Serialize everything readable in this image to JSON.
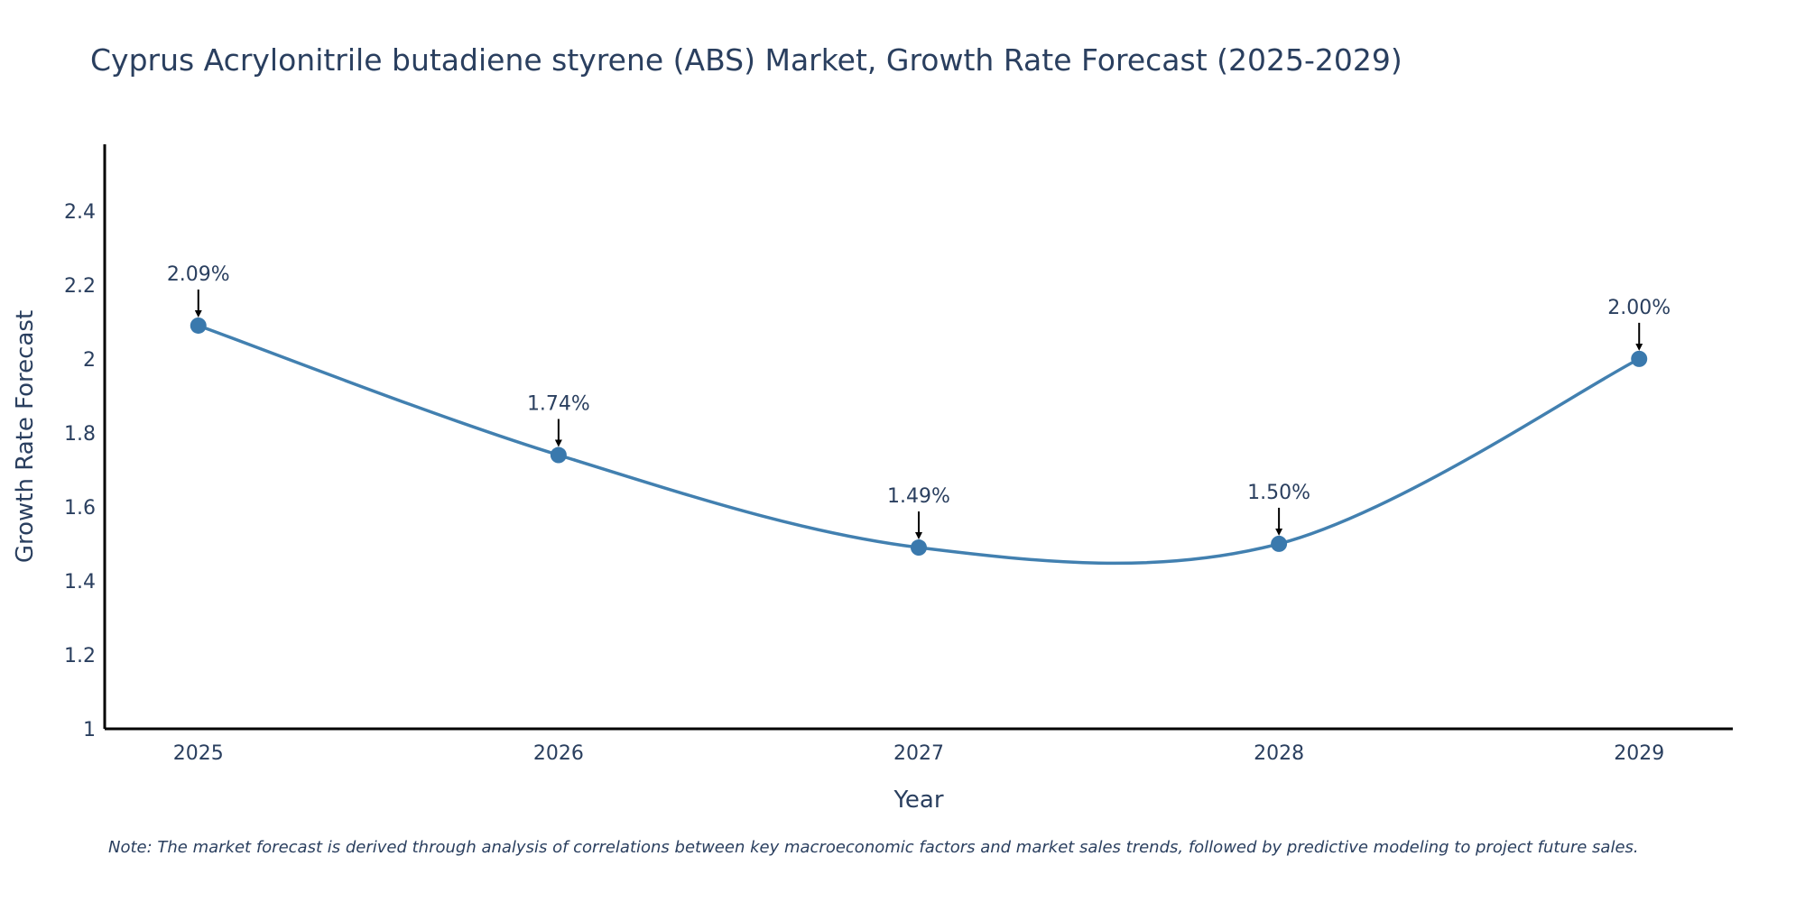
{
  "chart_data": {
    "type": "line",
    "title": "Cyprus Acrylonitrile butadiene styrene (ABS) Market, Growth Rate Forecast (2025-2029)",
    "xlabel": "Year",
    "ylabel": "Growth Rate Forecast",
    "categories": [
      "2025",
      "2026",
      "2027",
      "2028",
      "2029"
    ],
    "x": [
      2025,
      2026,
      2027,
      2028,
      2029
    ],
    "values": [
      2.09,
      1.74,
      1.49,
      1.5,
      2.0
    ],
    "data_labels": [
      "2.09%",
      "1.74%",
      "1.49%",
      "1.50%",
      "2.00%"
    ],
    "y_ticks": [
      "1",
      "1.2",
      "1.4",
      "1.6",
      "1.8",
      "2",
      "2.2",
      "2.4"
    ],
    "y_tick_values": [
      1,
      1.2,
      1.4,
      1.6,
      1.8,
      2.0,
      2.2,
      2.4
    ],
    "ylim": [
      1,
      2.58
    ],
    "xlim": [
      2024.74,
      2029.26
    ],
    "grid": false,
    "line_shape": "spline",
    "line_color": "#4280b0",
    "marker_color": "#3a79ad",
    "axis_color": "#000000",
    "annotation_arrow_color": "#000000"
  },
  "note": "Note: The market forecast is derived through analysis of correlations between key macroeconomic factors and market sales trends, followed by predictive modeling to project future sales."
}
